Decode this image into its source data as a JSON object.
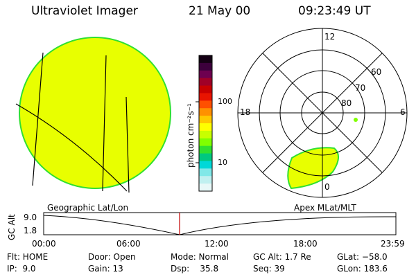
{
  "header": {
    "instrument": "Ultraviolet Imager",
    "date": "21 May 00",
    "time": "09:23:49 UT"
  },
  "colorbar": {
    "unit_label": "photon cm⁻²s⁻¹",
    "ticks": [
      "100",
      "10"
    ],
    "colors": [
      "#140014",
      "#3c003c",
      "#6e0050",
      "#a00028",
      "#c80000",
      "#e81400",
      "#ff5000",
      "#ff9000",
      "#ffc800",
      "#ffff00",
      "#c8ff00",
      "#80ff00",
      "#30e030",
      "#00c880",
      "#00d8d8",
      "#80e8e8",
      "#c0f0f0",
      "#e8f8f8"
    ]
  },
  "polar_plot": {
    "mlt_labels": {
      "top": "12",
      "left": "18",
      "right": "6",
      "bottom": "0"
    },
    "lat_labels": [
      "60",
      "70",
      "80"
    ]
  },
  "timeline": {
    "y_axis_label": "GC Alt",
    "y_ticks": [
      "9.0",
      "1.8"
    ],
    "left_caption": "Geographic Lat/Lon",
    "right_caption": "Apex MLat/MLT",
    "time_ticks": [
      "00:00",
      "06:00",
      "12:00",
      "18:00",
      "23:59"
    ]
  },
  "status": {
    "flt": "Flt: HOME",
    "ip": "IP:  9.0",
    "door": "Door: Open",
    "gain": "Gain: 13",
    "mode": "Mode: Normal",
    "dsp": "Dsp:    35.8",
    "gc_alt": "GC Alt: 1.7 Re",
    "seq": "Seq: 39",
    "glat": "GLat: −58.0",
    "glon": "GLon: 183.6"
  },
  "colors": {
    "disk_fill": "#e8ff00",
    "disk_edge": "#30e030",
    "marker_red": "#c00000"
  }
}
